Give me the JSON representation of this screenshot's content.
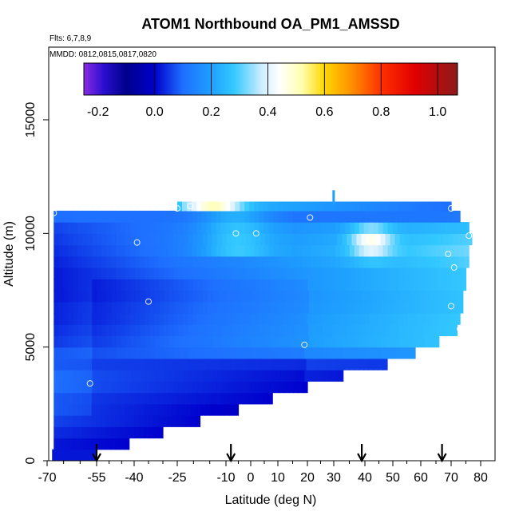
{
  "chart_data": {
    "type": "heatmap",
    "title": "ATOM1 Northbound OA_PM1_AMSSD",
    "flights_label": "Flts: 6,7,8,9",
    "mmdd_label": "MMDD: 0812,0815,0817,0820",
    "xlabel": "Latitude (deg N)",
    "ylabel": "Altitude (m)",
    "xlim": [
      -70,
      85
    ],
    "ylim": [
      0,
      18000
    ],
    "x_ticks": [
      -70,
      -55,
      -40,
      -25,
      -10,
      0,
      10,
      20,
      30,
      40,
      50,
      60,
      70,
      80
    ],
    "x_tick_labels": [
      "-70",
      "-55",
      "-40",
      "-25",
      "-10",
      "0",
      "10",
      "20",
      "30",
      "40",
      "50",
      "60",
      "70",
      "80"
    ],
    "y_ticks": [
      0,
      5000,
      10000,
      15000
    ],
    "y_tick_labels": [
      "0",
      "5000",
      "10000",
      "15000"
    ],
    "colorbar": {
      "range": [
        -0.25,
        1.07
      ],
      "ticks": [
        -0.2,
        0.0,
        0.2,
        0.4,
        0.6,
        0.8,
        1.0
      ],
      "tick_labels": [
        "-0.2",
        "0.0",
        "0.2",
        "0.4",
        "0.6",
        "0.8",
        "1.0"
      ],
      "stops": [
        {
          "v": -0.25,
          "c": "#8a2be2"
        },
        {
          "v": -0.18,
          "c": "#2a0fcf"
        },
        {
          "v": -0.1,
          "c": "#00008b"
        },
        {
          "v": 0.0,
          "c": "#0000cd"
        },
        {
          "v": 0.1,
          "c": "#1e6fff"
        },
        {
          "v": 0.2,
          "c": "#1ea0ff"
        },
        {
          "v": 0.28,
          "c": "#33c8ff"
        },
        {
          "v": 0.38,
          "c": "#cfeeff"
        },
        {
          "v": 0.44,
          "c": "#ffffff"
        },
        {
          "v": 0.52,
          "c": "#ffffb0"
        },
        {
          "v": 0.6,
          "c": "#ffd700"
        },
        {
          "v": 0.7,
          "c": "#ff8c00"
        },
        {
          "v": 0.8,
          "c": "#ff3000"
        },
        {
          "v": 0.92,
          "c": "#e00000"
        },
        {
          "v": 1.07,
          "c": "#8b1a1a"
        }
      ]
    },
    "profile_arrows_lat": [
      -55,
      -8,
      39,
      67
    ],
    "sample_points": [
      {
        "lat": -68,
        "alt": 10900
      },
      {
        "lat": -25,
        "alt": 11100
      },
      {
        "lat": -21,
        "alt": 11200
      },
      {
        "lat": -6,
        "alt": 10000
      },
      {
        "lat": 2,
        "alt": 10000
      },
      {
        "lat": 21,
        "alt": 10700
      },
      {
        "lat": 70,
        "alt": 11100
      },
      {
        "lat": -39,
        "alt": 9600
      },
      {
        "lat": 69,
        "alt": 9100
      },
      {
        "lat": 71,
        "alt": 8500
      },
      {
        "lat": 76,
        "alt": 9900
      },
      {
        "lat": -35,
        "alt": 7000
      },
      {
        "lat": 70,
        "alt": 6800
      },
      {
        "lat": 73,
        "alt": 5800
      },
      {
        "lat": 19,
        "alt": 5100
      },
      {
        "lat": -57,
        "alt": 3400
      }
    ],
    "field": {
      "description_rows": "altitude bands (bottom alt, top alt, lat range) with value profile along latitude",
      "bands": [
        {
          "alt0": 0,
          "alt1": 500,
          "lat0": -68,
          "lat1": -55,
          "v0": 0.02,
          "v1": 0.02
        },
        {
          "alt0": 500,
          "alt1": 1000,
          "lat0": -68,
          "lat1": -42,
          "v0": 0.02,
          "v1": 0.0
        },
        {
          "alt0": 1000,
          "alt1": 1500,
          "lat0": -68,
          "lat1": -30,
          "v0": 0.04,
          "v1": 0.0
        },
        {
          "alt0": 1500,
          "alt1": 2000,
          "lat0": -68,
          "lat1": -18,
          "v0": 0.06,
          "v1": 0.0
        },
        {
          "alt0": 2000,
          "alt1": 2500,
          "lat0": -68,
          "lat1": -5,
          "v0": 0.08,
          "v1": 0.01
        },
        {
          "alt0": 2500,
          "alt1": 3000,
          "lat0": -68,
          "lat1": 8,
          "v0": 0.08,
          "v1": 0.02
        },
        {
          "alt0": 3000,
          "alt1": 3500,
          "lat0": -68,
          "lat1": 20,
          "v0": 0.1,
          "v1": 0.02
        },
        {
          "alt0": 3500,
          "alt1": 4000,
          "lat0": -68,
          "lat1": 33,
          "v0": 0.1,
          "v1": 0.02
        },
        {
          "alt0": 4000,
          "alt1": 4500,
          "lat0": -68,
          "lat1": 48,
          "v0": 0.08,
          "v1": 0.05
        },
        {
          "alt0": 4500,
          "alt1": 5000,
          "lat0": -68,
          "lat1": 58,
          "v0": 0.08,
          "v1": 0.18
        },
        {
          "alt0": 5000,
          "alt1": 5500,
          "lat0": -68,
          "lat1": 66,
          "v0": 0.05,
          "v1": 0.27
        },
        {
          "alt0": 5500,
          "alt1": 6000,
          "lat0": -68,
          "lat1": 72,
          "v0": 0.04,
          "v1": 0.28
        },
        {
          "alt0": 6000,
          "alt1": 6500,
          "lat0": -68,
          "lat1": 73,
          "v0": 0.03,
          "v1": 0.28
        },
        {
          "alt0": 6500,
          "alt1": 7000,
          "lat0": -68,
          "lat1": 74,
          "v0": 0.03,
          "v1": 0.27
        },
        {
          "alt0": 7000,
          "alt1": 7500,
          "lat0": -68,
          "lat1": 74,
          "v0": 0.02,
          "v1": 0.27
        },
        {
          "alt0": 7500,
          "alt1": 8000,
          "lat0": -68,
          "lat1": 75,
          "v0": 0.02,
          "v1": 0.28
        },
        {
          "alt0": 8000,
          "alt1": 8500,
          "lat0": -68,
          "lat1": 75,
          "v0": 0.02,
          "v1": 0.28
        },
        {
          "alt0": 8500,
          "alt1": 9000,
          "lat0": -68,
          "lat1": 76,
          "v0": 0.03,
          "v1": 0.3
        },
        {
          "alt0": 9000,
          "alt1": 9500,
          "lat0": -68,
          "lat1": 76,
          "v0": 0.04,
          "v1": 0.32
        },
        {
          "alt0": 9500,
          "alt1": 10000,
          "lat0": -68,
          "lat1": 77,
          "v0": 0.05,
          "v1": 0.3
        },
        {
          "alt0": 10000,
          "alt1": 10500,
          "lat0": -68,
          "lat1": 76,
          "v0": 0.06,
          "v1": 0.26
        },
        {
          "alt0": 10500,
          "alt1": 11000,
          "lat0": -68,
          "lat1": 73,
          "v0": 0.1,
          "v1": 0.12
        },
        {
          "alt0": 11000,
          "alt1": 11400,
          "lat0": -25,
          "lat1": 70,
          "v0": 0.28,
          "v1": 0.1
        }
      ]
    }
  }
}
